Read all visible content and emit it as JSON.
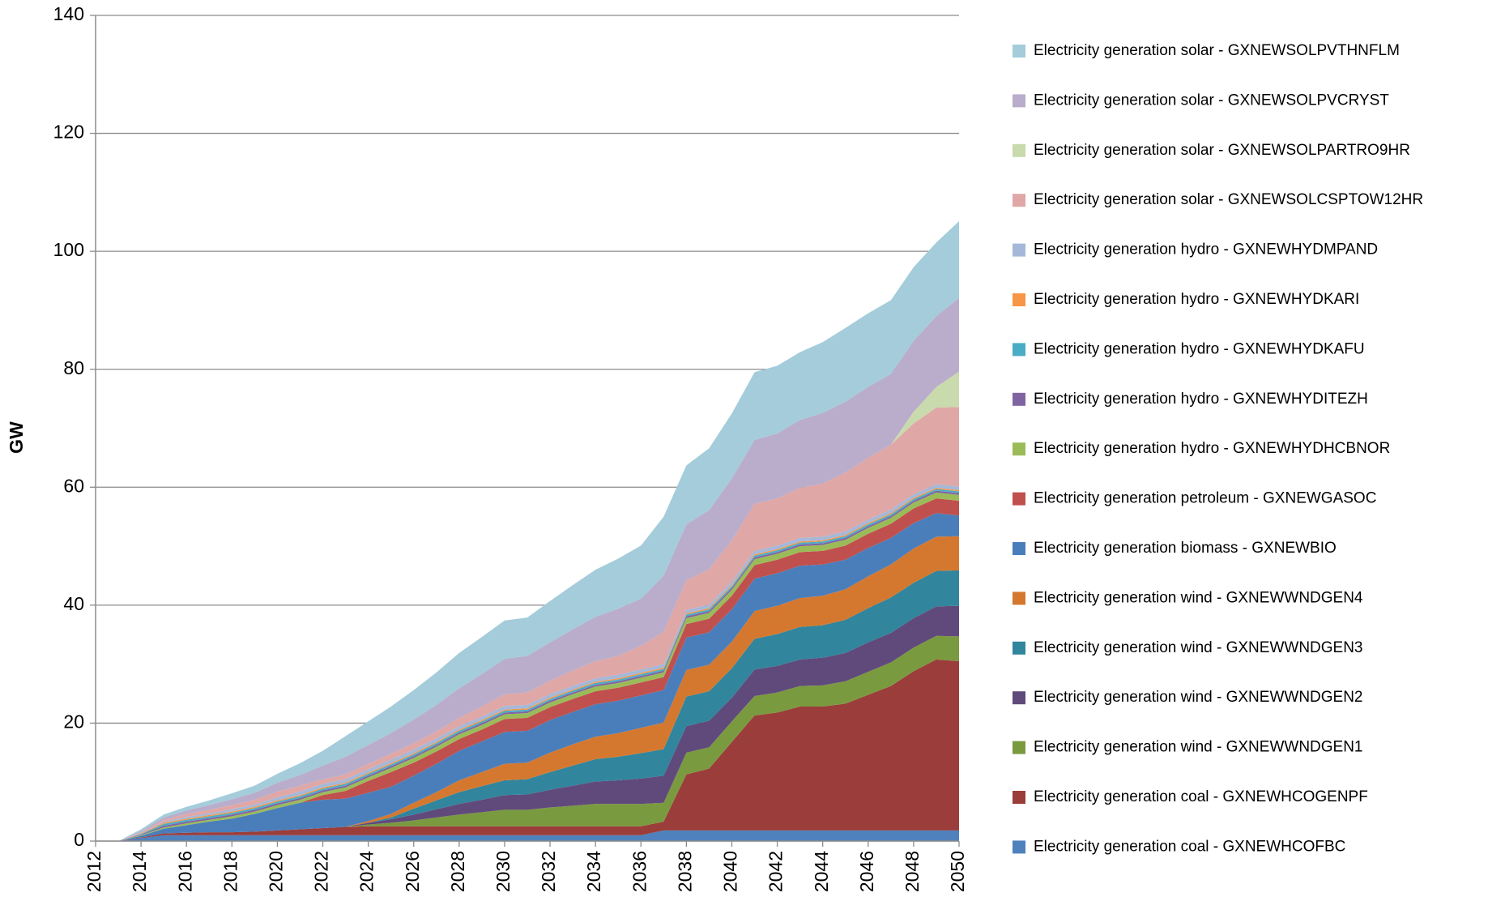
{
  "chart_data": {
    "type": "stacked_area",
    "y_label": "GW",
    "x": [
      2012,
      2013,
      2014,
      2015,
      2016,
      2017,
      2018,
      2019,
      2020,
      2021,
      2022,
      2023,
      2024,
      2025,
      2026,
      2027,
      2028,
      2029,
      2030,
      2031,
      2032,
      2033,
      2034,
      2035,
      2036,
      2037,
      2038,
      2039,
      2040,
      2041,
      2042,
      2043,
      2044,
      2045,
      2046,
      2047,
      2048,
      2049,
      2050
    ],
    "xlim": [
      2012,
      2050
    ],
    "xticks": [
      2012,
      2014,
      2016,
      2018,
      2020,
      2022,
      2024,
      2026,
      2028,
      2030,
      2032,
      2034,
      2036,
      2038,
      2040,
      2042,
      2044,
      2046,
      2048,
      2050
    ],
    "ylim": [
      0,
      140
    ],
    "yticks": [
      0,
      20,
      40,
      60,
      80,
      100,
      120,
      140
    ],
    "grid": true,
    "legend": "right",
    "series": [
      {
        "name": "Electricity generation coal - GXNEWHCOFBC",
        "color": "#4F81BD",
        "values": [
          0,
          0,
          0.5,
          1,
          1,
          1,
          1,
          1,
          1,
          1,
          1,
          1,
          1,
          1,
          1,
          1,
          1,
          1,
          1,
          1,
          1,
          1,
          1,
          1,
          1,
          1.8,
          1.8,
          1.8,
          1.8,
          1.8,
          1.8,
          1.8,
          1.8,
          1.8,
          1.8,
          1.8,
          1.8,
          1.8,
          1.8
        ]
      },
      {
        "name": "Electricity generation coal - GXNEWHCOGENPF",
        "color": "#9B3D3A",
        "values": [
          0,
          0,
          0.1,
          0.3,
          0.4,
          0.5,
          0.5,
          0.6,
          0.8,
          1,
          1.2,
          1.4,
          1.5,
          1.5,
          1.5,
          1.5,
          1.5,
          1.5,
          1.5,
          1.5,
          1.5,
          1.5,
          1.5,
          1.5,
          1.5,
          1.5,
          9.5,
          10.5,
          15,
          19.5,
          20,
          21,
          21,
          21.5,
          23,
          24.5,
          27,
          29,
          28.7
        ]
      },
      {
        "name": "Electricity generation wind - GXNEWWNDGEN1",
        "color": "#7A9A40",
        "values": [
          0,
          0,
          0,
          0,
          0,
          0,
          0,
          0,
          0,
          0,
          0,
          0,
          0.3,
          0.6,
          1,
          1.5,
          2,
          2.4,
          2.8,
          2.8,
          3.2,
          3.5,
          3.8,
          3.8,
          3.8,
          3.2,
          3.7,
          3.6,
          3.5,
          3.3,
          3.4,
          3.5,
          3.6,
          3.8,
          3.9,
          4,
          4,
          4,
          4.2
        ]
      },
      {
        "name": "Electricity generation wind - GXNEWWNDGEN2",
        "color": "#604A7B",
        "values": [
          0,
          0,
          0,
          0,
          0,
          0,
          0,
          0,
          0,
          0,
          0,
          0,
          0.3,
          0.6,
          1,
          1.4,
          1.8,
          2.1,
          2.5,
          2.6,
          3,
          3.4,
          3.8,
          4,
          4.3,
          4.6,
          4.5,
          4.5,
          4,
          4.5,
          4.5,
          4.5,
          4.7,
          4.8,
          5,
          5,
          5,
          5,
          5.2
        ]
      },
      {
        "name": "Electricity generation wind - GXNEWWNDGEN3",
        "color": "#31859C",
        "values": [
          0,
          0,
          0,
          0,
          0,
          0,
          0,
          0,
          0,
          0,
          0,
          0,
          0,
          0.3,
          1,
          1.5,
          2,
          2.3,
          2.5,
          2.6,
          3,
          3.4,
          3.8,
          4,
          4.3,
          4.5,
          5,
          5,
          5,
          5.2,
          5.4,
          5.5,
          5.5,
          5.6,
          5.8,
          6,
          6,
          6,
          6
        ]
      },
      {
        "name": "Electricity generation wind - GXNEWWNDGEN4",
        "color": "#D5782F",
        "values": [
          0,
          0,
          0,
          0,
          0,
          0,
          0,
          0,
          0,
          0,
          0,
          0,
          0.3,
          0.6,
          1,
          1.4,
          2,
          2.4,
          2.8,
          2.8,
          3.3,
          3.6,
          3.8,
          4,
          4.3,
          4.5,
          4.5,
          4.5,
          4.5,
          4.7,
          4.8,
          4.9,
          5,
          5.2,
          5.4,
          5.6,
          5.8,
          5.8,
          5.8
        ]
      },
      {
        "name": "Electricity generation biomass - GXNEWBIO",
        "color": "#4A7EBB",
        "values": [
          0,
          0,
          0.3,
          0.8,
          1.3,
          1.8,
          2.3,
          3,
          3.8,
          4.5,
          4.8,
          4.8,
          4.8,
          4.6,
          4.6,
          4.8,
          5,
          5.2,
          5.4,
          5.4,
          5.5,
          5.5,
          5.5,
          5.5,
          5.5,
          5.5,
          5.5,
          5.5,
          5.5,
          5.5,
          5.5,
          5.5,
          5.3,
          5,
          4.8,
          4.5,
          4.3,
          4,
          3.5
        ]
      },
      {
        "name": "Electricity generation petroleum - GXNEWGASOC",
        "color": "#C0504D",
        "values": [
          0,
          0,
          0,
          0,
          0,
          0,
          0,
          0,
          0,
          0,
          0.8,
          1.3,
          2,
          2.5,
          2.2,
          2.1,
          2,
          2,
          2.2,
          2.2,
          2.2,
          2.2,
          2.2,
          2.2,
          2.2,
          2.2,
          2.3,
          2.3,
          2.3,
          2.3,
          2.3,
          2.3,
          2.3,
          2.4,
          2.4,
          2.4,
          2.5,
          2.5,
          2.5
        ]
      },
      {
        "name": "Electricity generation hydro - GXNEWHYDHCBNOR",
        "color": "#9BBB59",
        "values": [
          0,
          0,
          0.1,
          0.2,
          0.3,
          0.3,
          0.4,
          0.4,
          0.5,
          0.5,
          0.5,
          0.6,
          0.6,
          0.7,
          0.8,
          0.8,
          0.8,
          0.8,
          0.8,
          0.8,
          0.8,
          0.8,
          0.8,
          0.8,
          0.8,
          0.8,
          1,
          1,
          1,
          1,
          1,
          1,
          1,
          1,
          1,
          1,
          1,
          1,
          1
        ]
      },
      {
        "name": "Electricity generation hydro - GXNEWHYDITEZH",
        "color": "#8064A2",
        "values": [
          0,
          0,
          0.1,
          0.3,
          0.3,
          0.3,
          0.3,
          0.3,
          0.3,
          0.3,
          0.3,
          0.3,
          0.3,
          0.3,
          0.3,
          0.3,
          0.3,
          0.3,
          0.3,
          0.3,
          0.3,
          0.3,
          0.3,
          0.3,
          0.3,
          0.3,
          0.3,
          0.3,
          0.3,
          0.3,
          0.3,
          0.3,
          0.3,
          0.3,
          0.3,
          0.3,
          0.3,
          0.3,
          0.3
        ]
      },
      {
        "name": "Electricity generation hydro - GXNEWHYDKAFU",
        "color": "#4BACC6",
        "values": [
          0,
          0,
          0.1,
          0.3,
          0.3,
          0.3,
          0.3,
          0.3,
          0.3,
          0.3,
          0.3,
          0.3,
          0.3,
          0.3,
          0.3,
          0.3,
          0.3,
          0.3,
          0.3,
          0.3,
          0.3,
          0.3,
          0.3,
          0.3,
          0.3,
          0.3,
          0.3,
          0.3,
          0.3,
          0.3,
          0.3,
          0.3,
          0.3,
          0.3,
          0.3,
          0.3,
          0.3,
          0.3,
          0.3
        ]
      },
      {
        "name": "Electricity generation hydro - GXNEWHYDKARI",
        "color": "#F79646",
        "values": [
          0,
          0,
          0.1,
          0.2,
          0.2,
          0.2,
          0.2,
          0.2,
          0.2,
          0.2,
          0.2,
          0.2,
          0.2,
          0.2,
          0.2,
          0.2,
          0.2,
          0.2,
          0.2,
          0.2,
          0.2,
          0.2,
          0.2,
          0.2,
          0.2,
          0.2,
          0.2,
          0.2,
          0.2,
          0.2,
          0.2,
          0.2,
          0.2,
          0.2,
          0.2,
          0.2,
          0.2,
          0.2,
          0.2
        ]
      },
      {
        "name": "Electricity generation hydro - GXNEWHYDMPAND",
        "color": "#A5B8D8",
        "values": [
          0,
          0,
          0.1,
          0.2,
          0.3,
          0.3,
          0.4,
          0.4,
          0.5,
          0.6,
          0.6,
          0.6,
          0.6,
          0.6,
          0.6,
          0.6,
          0.6,
          0.6,
          0.6,
          0.6,
          0.6,
          0.6,
          0.6,
          0.6,
          0.6,
          0.6,
          0.6,
          0.6,
          0.6,
          0.6,
          0.6,
          0.6,
          0.6,
          0.6,
          0.6,
          0.6,
          0.6,
          0.6,
          0.6
        ]
      },
      {
        "name": "Electricity generation solar - GXNEWSOLCSPTOW12HR",
        "color": "#DFA7A6",
        "values": [
          0,
          0,
          0.1,
          0.3,
          0.5,
          0.6,
          0.7,
          0.8,
          1,
          1,
          0.8,
          0.8,
          0.9,
          1,
          1.1,
          1.2,
          1.4,
          1.7,
          2,
          2.1,
          2.3,
          2.6,
          2.9,
          3.2,
          4,
          5.5,
          5,
          6,
          7,
          8,
          8,
          8.5,
          9,
          10,
          10.5,
          11,
          12,
          13,
          13.5
        ]
      },
      {
        "name": "Electricity generation solar - GXNEWSOLPARTRO9HR",
        "color": "#C9DAAD",
        "values": [
          0,
          0,
          0,
          0,
          0,
          0,
          0,
          0,
          0,
          0,
          0,
          0,
          0,
          0,
          0,
          0,
          0,
          0,
          0,
          0,
          0,
          0,
          0,
          0,
          0,
          0,
          0,
          0,
          0,
          0,
          0,
          0,
          0,
          0,
          0,
          0,
          2,
          3.5,
          6
        ]
      },
      {
        "name": "Electricity generation solar - GXNEWSOLPVCRYST",
        "color": "#B9ADCB",
        "values": [
          0,
          0,
          0.2,
          0.4,
          0.6,
          0.8,
          1,
          1.2,
          1.5,
          1.8,
          2.3,
          3,
          3.2,
          3.5,
          4,
          4.5,
          5,
          5.5,
          6,
          6.2,
          6.5,
          7,
          7.5,
          8,
          8,
          9.5,
          9.5,
          10,
          10.5,
          10.8,
          11,
          11.5,
          12,
          12,
          12,
          12,
          12,
          12,
          12.5
        ]
      },
      {
        "name": "Electricity generation solar - GXNEWSOLPVTHNFLM",
        "color": "#A4CCDA",
        "values": [
          0,
          0,
          0.3,
          0.5,
          0.6,
          0.8,
          1,
          1.2,
          1.5,
          2,
          2.5,
          3.5,
          4,
          4.5,
          5,
          5.5,
          6,
          6.3,
          6.5,
          6.5,
          7,
          7.5,
          8,
          8.5,
          9,
          10,
          10,
          10.5,
          11,
          11.5,
          11.5,
          11.5,
          12,
          12.5,
          12.5,
          12.5,
          12.5,
          12.5,
          13
        ]
      }
    ]
  }
}
